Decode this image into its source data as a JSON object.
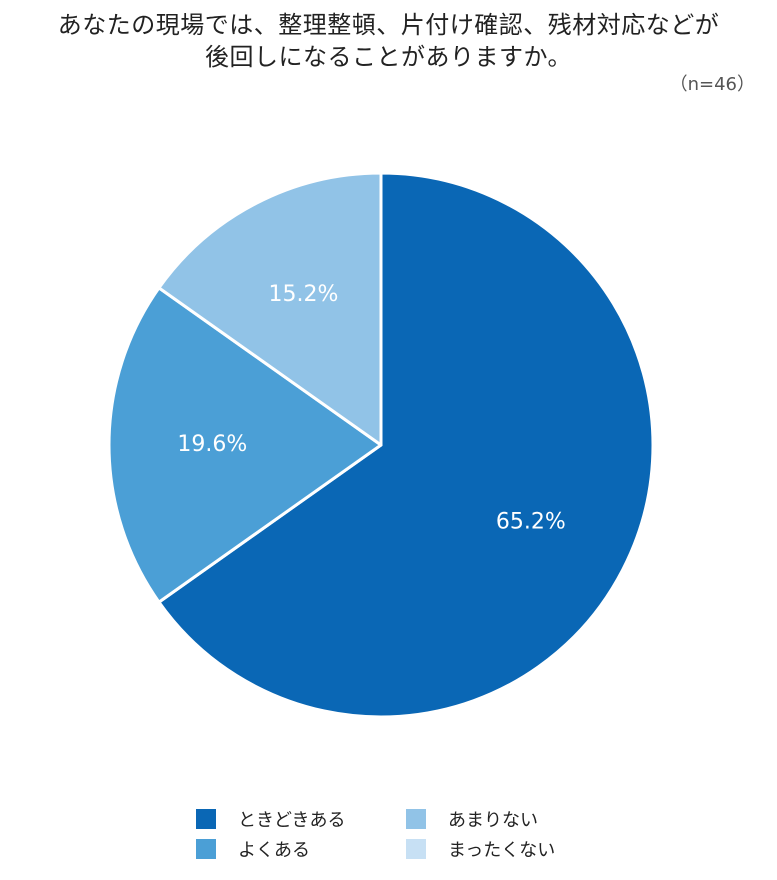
{
  "header": {
    "title_line1": "あなたの現場では、整理整頓、片付け確認、残材対応などが",
    "title_line2": "後回しになることがありますか。",
    "sample_size": "（n=46）"
  },
  "colors": {
    "tokidoki": "#0a67b5",
    "yoku": "#4b9fd6",
    "amari": "#91c3e7",
    "mattaku": "#c7e0f4"
  },
  "chart_data": {
    "type": "pie",
    "title": "あなたの現場では、整理整頓、片付け確認、残材対応などが後回しになることがありますか。",
    "categories": [
      "ときどきある",
      "よくある",
      "あまりない",
      "まったくない"
    ],
    "values": [
      65.2,
      19.6,
      15.2,
      0
    ],
    "value_labels": [
      "65.2%",
      "19.6%",
      "15.2%",
      ""
    ],
    "unit": "%",
    "legend_position": "bottom"
  },
  "legend": {
    "items": [
      {
        "label": "ときどきある"
      },
      {
        "label": "よくある"
      },
      {
        "label": "あまりない"
      },
      {
        "label": "まったくない"
      }
    ]
  }
}
